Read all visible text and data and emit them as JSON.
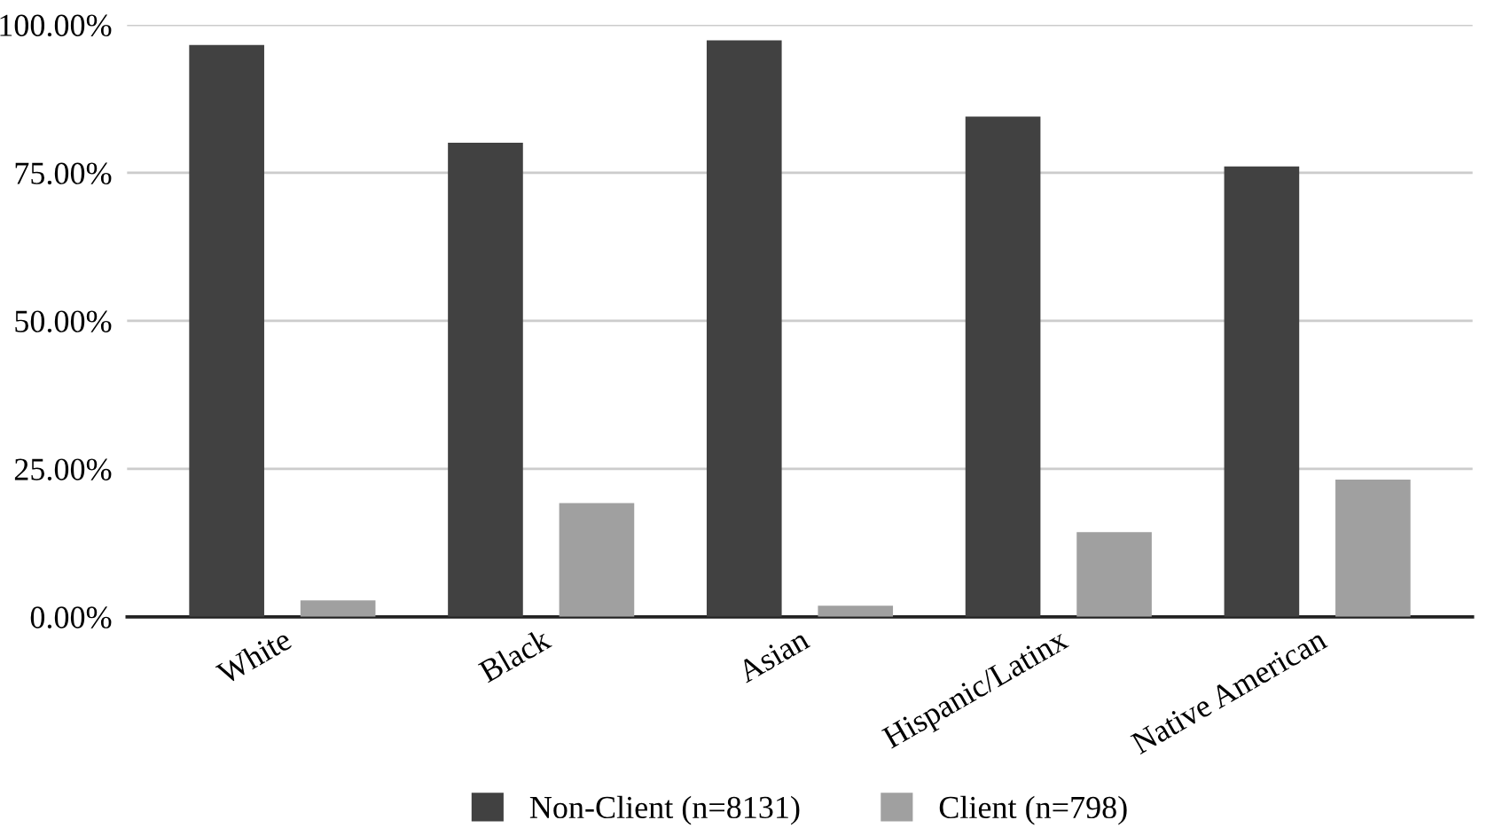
{
  "chart_data": {
    "type": "bar",
    "categories": [
      "White",
      "Black",
      "Asian",
      "Hispanic/Latinx",
      "Native American"
    ],
    "series": [
      {
        "name": "Non-Client (n=8131)",
        "color": "#414141",
        "values": [
          96.6,
          80.1,
          97.4,
          84.5,
          76.1
        ]
      },
      {
        "name": "Client (n=798)",
        "color": "#a0a0a0",
        "values": [
          2.8,
          19.2,
          1.9,
          14.3,
          23.2
        ]
      }
    ],
    "ylim": [
      0,
      100
    ],
    "yticks": [
      {
        "value": 0,
        "label": "0.00%"
      },
      {
        "value": 25,
        "label": "25.00%"
      },
      {
        "value": 50,
        "label": "50.00%"
      },
      {
        "value": 75,
        "label": "75.00%"
      },
      {
        "value": 100,
        "label": "100.00%"
      }
    ],
    "grid": "y",
    "legend": "bottom"
  }
}
